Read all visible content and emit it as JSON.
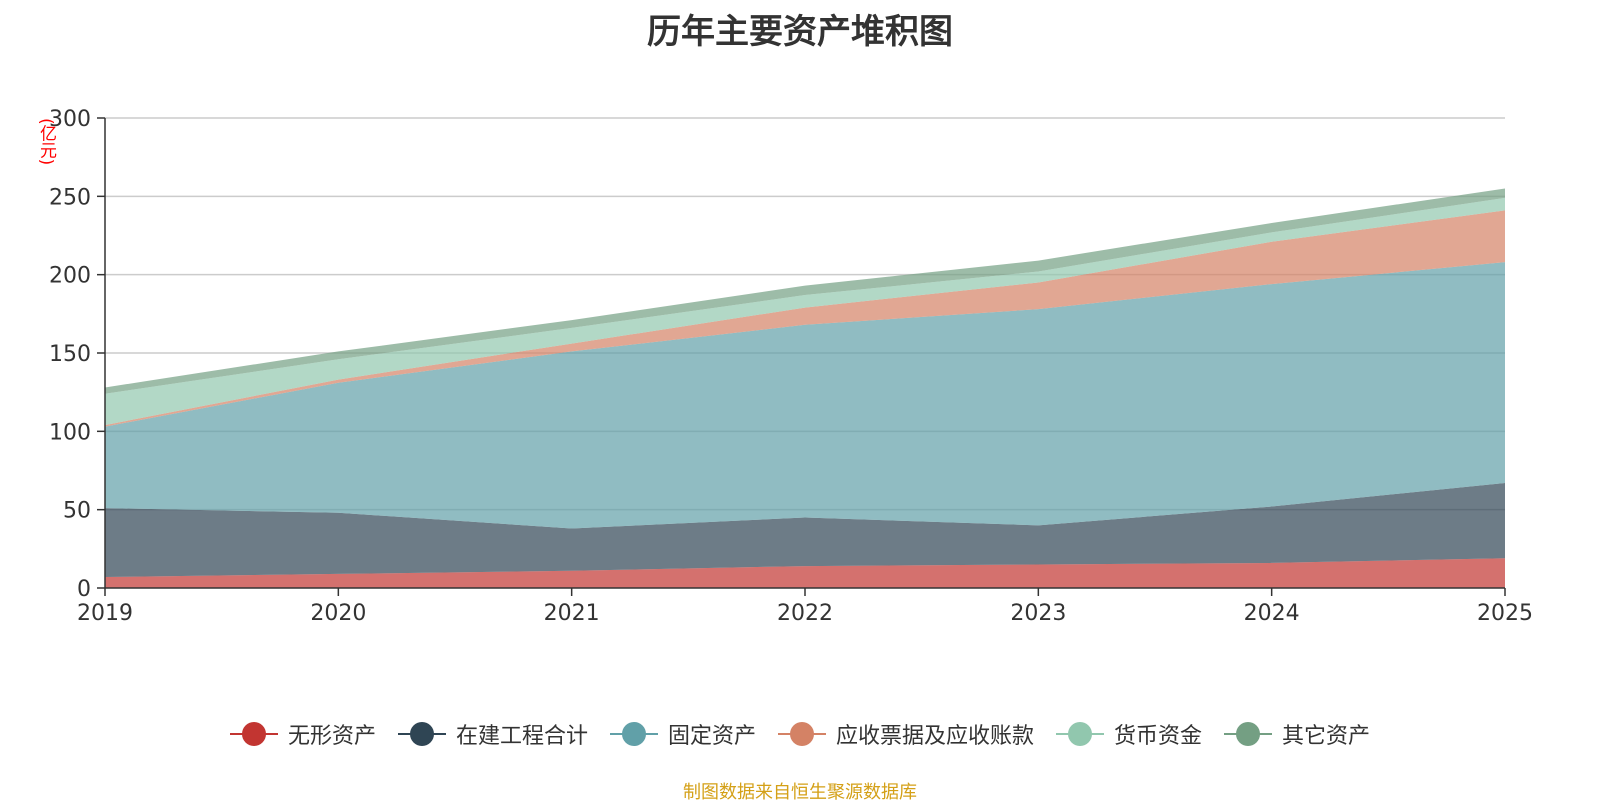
{
  "chart_data": {
    "type": "area",
    "title": "历年主要资产堆积图",
    "unit_label": "(亿元)",
    "x": [
      "2019",
      "2020",
      "2021",
      "2022",
      "2023",
      "2024",
      "2025"
    ],
    "ylim": [
      0,
      300
    ],
    "yticks": [
      0,
      50,
      100,
      150,
      200,
      250,
      300
    ],
    "stacked": true,
    "grid": true,
    "legend_position": "bottom",
    "series": [
      {
        "name": "无形资产",
        "color": "#c23531",
        "values": [
          7,
          9,
          11,
          14,
          15,
          16,
          19
        ]
      },
      {
        "name": "在建工程合计",
        "color": "#2f4554",
        "values": [
          44,
          39,
          27,
          31,
          25,
          36,
          48
        ]
      },
      {
        "name": "固定资产",
        "color": "#61a0a8",
        "values": [
          52,
          83,
          113,
          123,
          138,
          142,
          141
        ]
      },
      {
        "name": "应收票据及应收账款",
        "color": "#d48265",
        "values": [
          1,
          2,
          5,
          11,
          17,
          27,
          33
        ]
      },
      {
        "name": "货币资金",
        "color": "#91c7ae",
        "values": [
          20,
          13,
          10,
          8,
          7,
          6,
          8
        ]
      },
      {
        "name": "其它资产",
        "color": "#749f83",
        "values": [
          4,
          5,
          5,
          6,
          7,
          6,
          6
        ]
      }
    ],
    "source_note": "制图数据来自恒生聚源数据库"
  }
}
